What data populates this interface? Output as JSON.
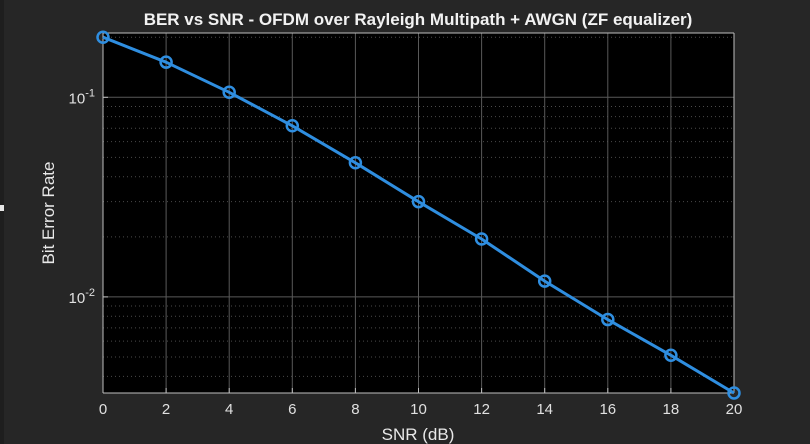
{
  "chart_data": {
    "type": "line",
    "title": "BER vs SNR - OFDM over Rayleigh Multipath + AWGN (ZF equalizer)",
    "xlabel": "SNR (dB)",
    "ylabel": "Bit Error Rate",
    "xlim": [
      0,
      20
    ],
    "ylim": [
      0.0033,
      0.21
    ],
    "yscale": "log",
    "grid": true,
    "x": [
      0,
      2,
      4,
      6,
      8,
      10,
      12,
      14,
      16,
      18,
      20
    ],
    "xticks": [
      "0",
      "2",
      "4",
      "6",
      "8",
      "10",
      "12",
      "14",
      "16",
      "18",
      "20"
    ],
    "yticks": [
      {
        "value": 0.1,
        "base": "10",
        "exp": "-1"
      },
      {
        "value": 0.01,
        "base": "10",
        "exp": "-2"
      }
    ],
    "series": [
      {
        "values": [
          0.2,
          0.15,
          0.106,
          0.072,
          0.047,
          0.03,
          0.0195,
          0.012,
          0.0077,
          0.0051,
          0.0033
        ],
        "color": "#2f8ee0",
        "marker": "circle"
      }
    ]
  }
}
